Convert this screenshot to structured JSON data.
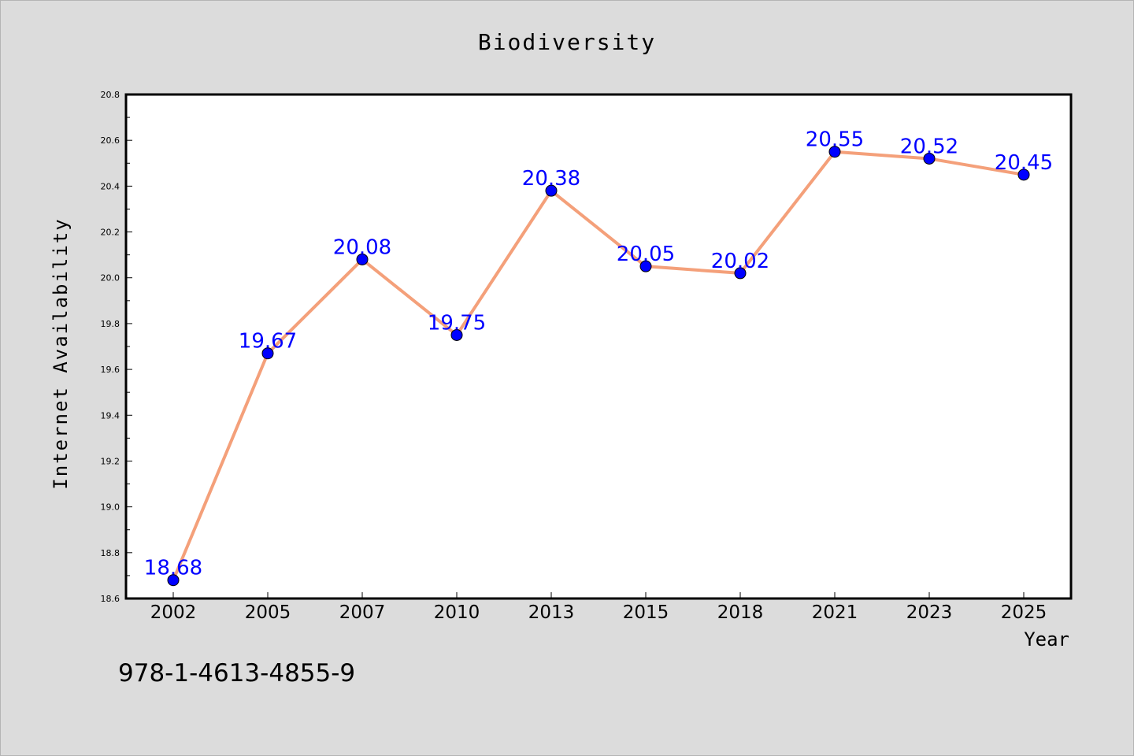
{
  "chart_data": {
    "type": "line",
    "title": "Biodiversity",
    "xlabel": "Year",
    "ylabel": "Internet Availability",
    "categories": [
      "2002",
      "2005",
      "2007",
      "2010",
      "2013",
      "2015",
      "2018",
      "2021",
      "2023",
      "2025"
    ],
    "series": [
      {
        "values": [
          18.68,
          19.67,
          20.08,
          19.75,
          20.38,
          20.05,
          20.02,
          20.55,
          20.52,
          20.45
        ],
        "line_color": "#f4a07a",
        "marker_color": "#0000ff"
      }
    ],
    "data_labels": [
      "18.68",
      "19.67",
      "20.08",
      "19.75",
      "20.38",
      "20.05",
      "20.02",
      "20.55",
      "20.52",
      "20.45"
    ],
    "ylim": [
      18.6,
      20.8
    ],
    "yticks": [
      "18.6",
      "18.8",
      "19.0",
      "19.2",
      "19.4",
      "19.6",
      "19.8",
      "20.0",
      "20.2",
      "20.4",
      "20.6",
      "20.8"
    ],
    "grid": false,
    "legend": "none",
    "label_color": "#0000ff"
  },
  "annotation": "978-1-4613-4855-9"
}
